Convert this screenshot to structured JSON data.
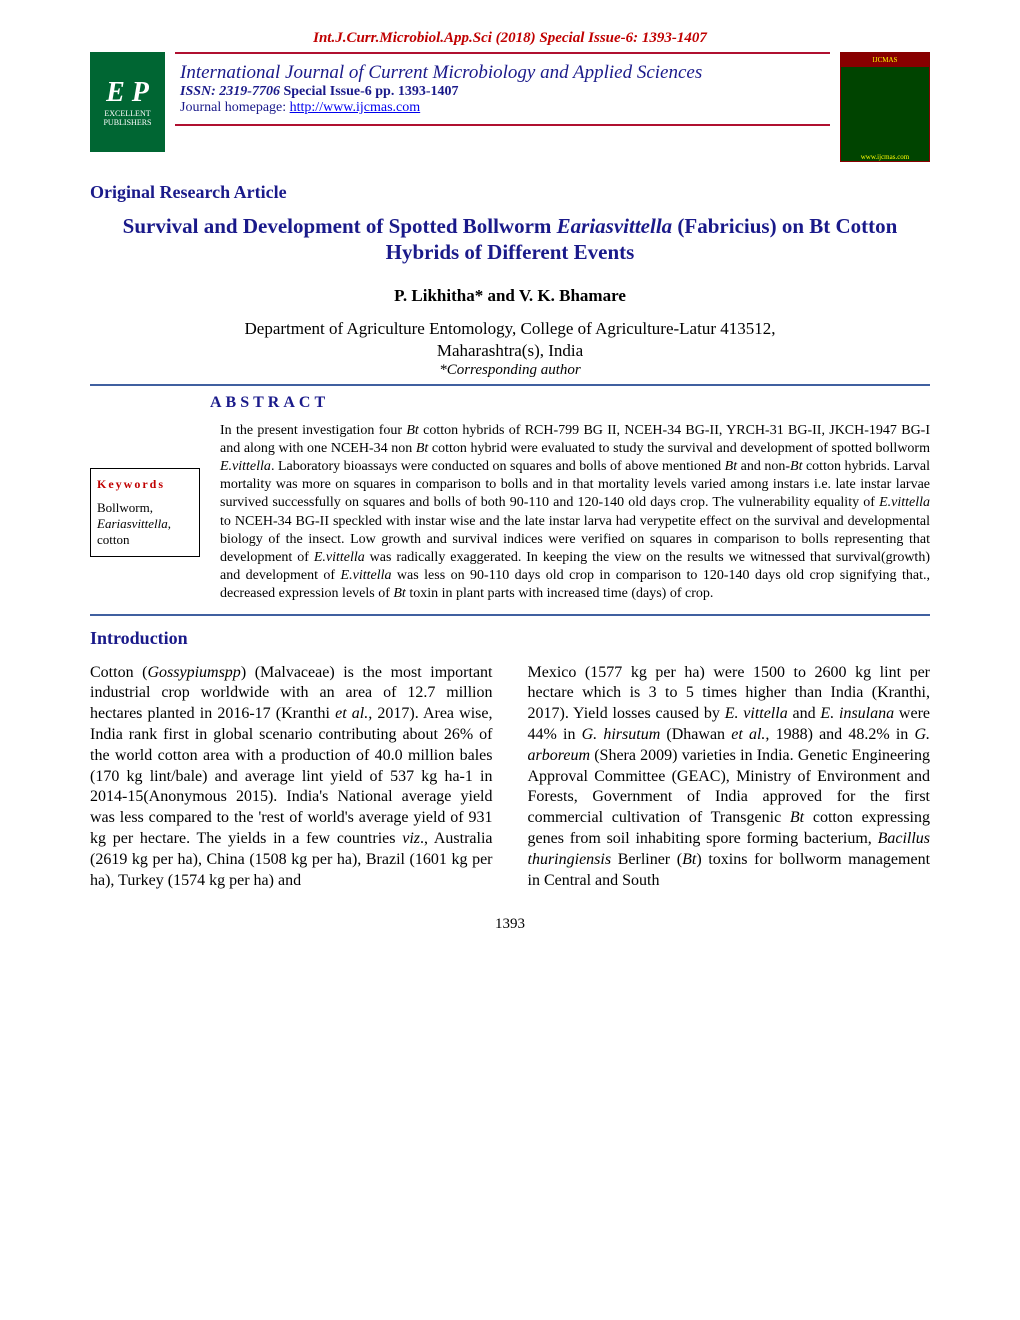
{
  "citation": "Int.J.Curr.Microbiol.App.Sci (2018) Special Issue-6: 1393-1407",
  "header": {
    "journal_name": "International Journal of Current Microbiology and Applied Sciences",
    "issn": "ISSN: 2319-7706",
    "special": "Special Issue-6 pp. 1393-1407",
    "homepage_label": "Journal homepage: ",
    "homepage_url": "http://www.ijcmas.com",
    "left_logo": {
      "ep": "E P",
      "label": "EXCELLENT PUBLISHERS"
    },
    "right_logo": {
      "top": "IJCMAS",
      "bottom": "www.ijcmas.com"
    }
  },
  "article_type": "Original Research Article",
  "title_pre": "Survival and Development of Spotted Bollworm ",
  "title_species": "Eariasvittella",
  "title_post": " (Fabricius) on Bt Cotton Hybrids of Different Events",
  "authors": "P. Likhitha* and V. K. Bhamare",
  "affiliation_line1": "Department of Agriculture Entomology, College of Agriculture-Latur 413512,",
  "affiliation_line2": "Maharashtra(s), India",
  "corresponding": "*Corresponding author",
  "abstract_heading": "ABSTRACT",
  "keywords": {
    "title": "Keywords",
    "line1": "Bollworm,",
    "species": "Eariasvittella",
    "line2": ", cotton"
  },
  "abstract": {
    "p1a": "In the present investigation four ",
    "it1": "Bt",
    "p1b": " cotton hybrids of RCH-799 BG II, NCEH-34 BG-II, YRCH-31 BG-II, JKCH-1947 BG-I and along with one NCEH-34 non ",
    "it2": "Bt",
    "p1c": " cotton hybrid were evaluated to study the survival and development of spotted bollworm ",
    "it3": "E.vittella",
    "p1d": ". Laboratory bioassays were conducted on squares and bolls of above mentioned ",
    "it4": "Bt",
    "p1e": " and non-",
    "it5": "Bt",
    "p1f": " cotton hybrids. Larval mortality was more on squares in comparison to bolls and in that mortality levels varied among instars i.e. late instar larvae survived successfully on squares and bolls of both 90-110 and 120-140 old days crop. The vulnerability equality of ",
    "it6": "E.vittella",
    "p1g": " to NCEH-34 BG-II speckled with instar wise and the late instar larva had verypetite effect on the survival and developmental biology of the insect. Low growth and survival indices were verified on squares in comparison to bolls representing that development of ",
    "it7": "E.vittella",
    "p1h": " was radically exaggerated. In keeping the view on the results we witnessed that survival(growth) and development of ",
    "it8": "E.vittella",
    "p1i": " was less on 90-110 days old crop in comparison to 120-140 days old crop signifying that., decreased expression levels of ",
    "it9": "Bt",
    "p1j": " toxin in plant parts with increased time (days) of crop."
  },
  "introduction_heading": "Introduction",
  "col1": {
    "a": "Cotton (",
    "it1": "Gossypiumspp",
    "b": ") (Malvaceae) is the most important industrial crop worldwide with an area of 12.7 million hectares planted in 2016-17 (Kranthi ",
    "it2": "et al.,",
    "c": " 2017). Area wise, India rank first in global scenario contributing about 26% of the world cotton area with a production of 40.0 million bales (170 kg lint/bale) and average lint yield of 537 kg ha-1 in 2014-15(Anonymous 2015). India's National average yield was less compared to the 'rest of world's average yield of 931 kg per hectare. The yields in a few countries ",
    "it3": "viz",
    "d": "., Australia (2619 kg per ha), China (1508 kg per ha), Brazil (1601 kg per ha), Turkey (1574 kg per ha) and"
  },
  "col2": {
    "a": "Mexico (1577 kg per ha) were 1500 to 2600 kg lint per hectare which is 3 to 5 times higher than India (Kranthi, 2017). Yield losses caused by ",
    "it1": "E. vittella",
    "b": " and ",
    "it2": "E. insulana",
    "c": " were 44% in ",
    "it3": "G. hirsutum",
    "d": " (Dhawan ",
    "it4": "et al.,",
    "e": " 1988) and 48.2% in ",
    "it5": "G. arboreum",
    "f": " (Shera 2009) varieties in India. Genetic Engineering Approval Committee (GEAC), Ministry of Environment and Forests, Government of India approved for the first commercial cultivation of Transgenic ",
    "it6": "Bt",
    "g": " cotton expressing genes from soil inhabiting spore forming bacterium, ",
    "it7": "Bacillus thuringiensis",
    "h": " Berliner (",
    "it8": "Bt",
    "i": ") toxins for bollworm management in Central and South"
  },
  "page_number": "1393"
}
